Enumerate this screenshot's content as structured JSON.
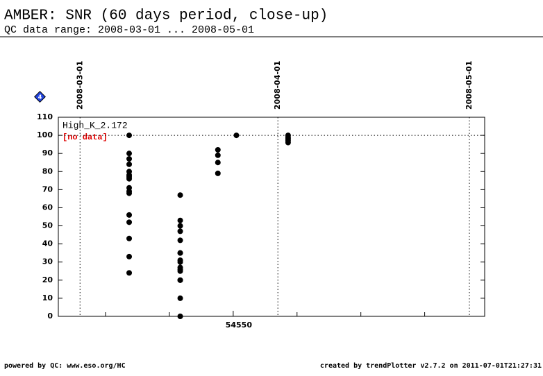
{
  "chart_data": {
    "type": "scatter",
    "title": "AMBER: SNR (60 days period, close-up)",
    "subtitle": "QC data range: 2008-03-01 ... 2008-05-01",
    "series_label": "High_K_2.172",
    "annotation": "[no data]",
    "badge": "4",
    "footer_left": "powered by QC: www.eso.org/HC",
    "footer_right": "created by trendPlotter v2.7.2 on 2011-07-01T21:27:31",
    "color": "#000000",
    "reference_line": 100,
    "x": [
      54533.7,
      54533.7,
      54533.7,
      54533.7,
      54533.7,
      54533.7,
      54533.7,
      54533.7,
      54533.7,
      54533.7,
      54533.7,
      54533.7,
      54533.7,
      54533.7,
      54533.7,
      54533.7,
      54541.7,
      54541.7,
      54541.7,
      54541.7,
      54541.7,
      54541.7,
      54541.7,
      54541.7,
      54541.7,
      54541.7,
      54541.7,
      54541.7,
      54541.7,
      54541.7,
      54541.7,
      54541.7,
      54547.6,
      54547.6,
      54547.6,
      54547.6,
      54550.5,
      54558.6,
      54558.6,
      54558.6,
      54558.6,
      54558.6
    ],
    "values": [
      100,
      90,
      87,
      84,
      80,
      78,
      77,
      76,
      71,
      69,
      68,
      56,
      52,
      43,
      33,
      24,
      67,
      53,
      50,
      47,
      42,
      35,
      35,
      31,
      30,
      27,
      26,
      25,
      20,
      20,
      10,
      0,
      92,
      89,
      85,
      79,
      100,
      100,
      99,
      98,
      97,
      96
    ],
    "xlim": [
      54522.6,
      54589.4
    ],
    "xticks": [
      54550
    ],
    "xminorticks": [
      54530,
      54540,
      54560,
      54570,
      54580
    ],
    "date_markers": [
      {
        "value": 54526,
        "label": "2008-03-01"
      },
      {
        "value": 54557,
        "label": "2008-04-01"
      },
      {
        "value": 54587,
        "label": "2008-05-01"
      }
    ],
    "ylim": [
      0,
      110
    ],
    "yticks": [
      0,
      10,
      20,
      30,
      40,
      50,
      60,
      70,
      80,
      90,
      100,
      110
    ]
  }
}
